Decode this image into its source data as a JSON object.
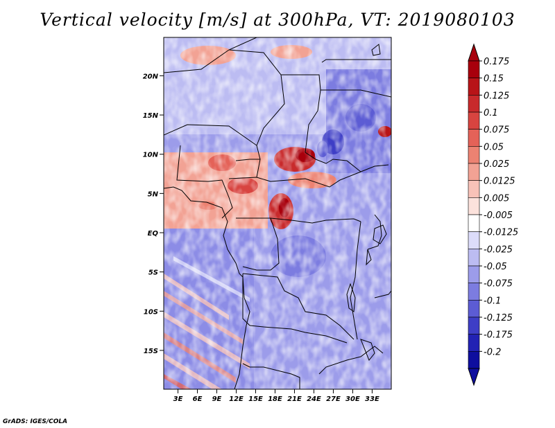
{
  "title": "Vertical velocity [m/s] at 300hPa, VT: 2019080103",
  "credit": "GrADS: IGES/COLA",
  "map": {
    "lat_labels": [
      {
        "lat": 20,
        "label": "20N"
      },
      {
        "lat": 15,
        "label": "15N"
      },
      {
        "lat": 10,
        "label": "10N"
      },
      {
        "lat": 5,
        "label": "5N"
      },
      {
        "lat": 0,
        "label": "EQ"
      },
      {
        "lat": -5,
        "label": "5S"
      },
      {
        "lat": -10,
        "label": "10S"
      },
      {
        "lat": -15,
        "label": "15S"
      }
    ],
    "lon_labels": [
      {
        "lon": 3,
        "label": "3E"
      },
      {
        "lon": 6,
        "label": "6E"
      },
      {
        "lon": 9,
        "label": "9E"
      },
      {
        "lon": 12,
        "label": "12E"
      },
      {
        "lon": 15,
        "label": "15E"
      },
      {
        "lon": 18,
        "label": "18E"
      },
      {
        "lon": 21,
        "label": "21E"
      },
      {
        "lon": 24,
        "label": "24E"
      },
      {
        "lon": 27,
        "label": "27E"
      },
      {
        "lon": 30,
        "label": "30E"
      },
      {
        "lon": 33,
        "label": "33E"
      }
    ]
  },
  "colorbar": {
    "levels": [
      {
        "label": "0.175",
        "color": "#a8000c"
      },
      {
        "label": "0.15",
        "color": "#b81418"
      },
      {
        "label": "0.125",
        "color": "#c82a2c"
      },
      {
        "label": "0.1",
        "color": "#d84440"
      },
      {
        "label": "0.075",
        "color": "#e46258"
      },
      {
        "label": "0.05",
        "color": "#ec8272"
      },
      {
        "label": "0.025",
        "color": "#f2a294"
      },
      {
        "label": "0.0125",
        "color": "#f8c2b8"
      },
      {
        "label": "0.005",
        "color": "#fce2dc"
      },
      {
        "label": "-0.005",
        "color": "#ffffff"
      },
      {
        "label": "-0.0125",
        "color": "#dcdcfa"
      },
      {
        "label": "-0.025",
        "color": "#bcbcf2"
      },
      {
        "label": "-0.05",
        "color": "#9c9cea"
      },
      {
        "label": "-0.075",
        "color": "#7c7ce0"
      },
      {
        "label": "-0.1",
        "color": "#5c5cd4"
      },
      {
        "label": "-0.125",
        "color": "#3e3ec6"
      },
      {
        "label": "-0.175",
        "color": "#2222b4"
      },
      {
        "label": "-0.2",
        "color": "#0e0e9e"
      }
    ],
    "top_arrow_color": "#a8000c",
    "bottom_arrow_color": "#0e0e9e"
  }
}
